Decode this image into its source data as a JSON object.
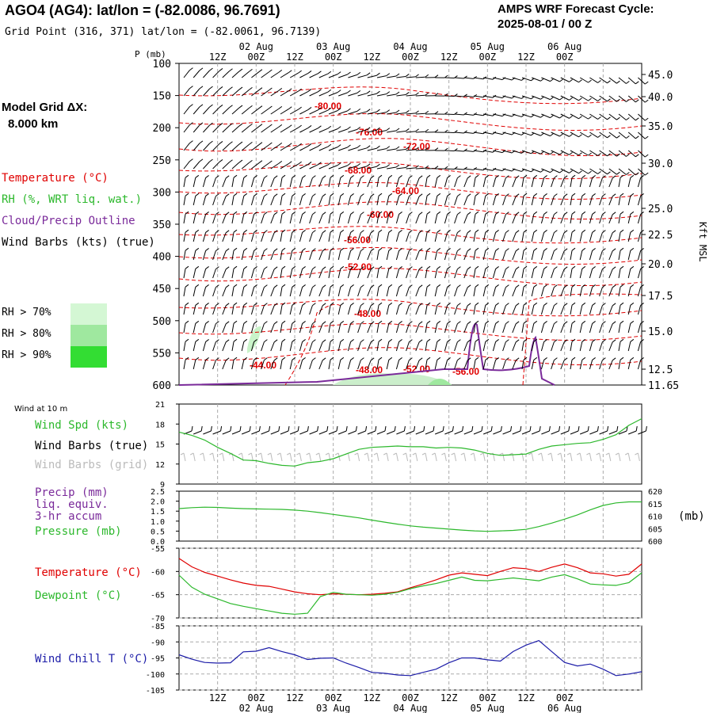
{
  "header": {
    "title": "AGO4 (AG4):  lat/lon = (-82.0086, 96.7691)",
    "subtitle": "Grid Point (316, 371) lat/lon = (-82.0061, 96.7139)",
    "cycle_label": "AMPS WRF Forecast Cycle:",
    "cycle_value": "2025-08-01 / 00  Z"
  },
  "left_panel": {
    "model_grid_label": "Model Grid ΔX:",
    "model_grid_value": "8.000 km",
    "legend": [
      {
        "label": "Temperature (°C)",
        "color": "#e00000"
      },
      {
        "label": "RH (%, WRT liq. wat.)",
        "color": "#2cb82c"
      },
      {
        "label": "Cloud/Precip Outline",
        "color": "#7a2a9a"
      },
      {
        "label": "Wind Barbs (kts) (true)",
        "color": "#000000"
      }
    ],
    "rh_legend": [
      {
        "label": "RH > 70%",
        "color": "#d4f7d4"
      },
      {
        "label": "RH > 80%",
        "color": "#9fe89f"
      },
      {
        "label": "RH > 90%",
        "color": "#33dd33"
      }
    ]
  },
  "time_axis": {
    "hour_labels": [
      "12Z",
      "00Z",
      "12Z",
      "00Z",
      "12Z",
      "00Z",
      "12Z",
      "00Z",
      "12Z",
      "00Z"
    ],
    "date_labels": [
      "02 Aug",
      "03 Aug",
      "04 Aug",
      "05 Aug",
      "06 Aug"
    ]
  },
  "chart_data": [
    {
      "type": "contour",
      "name": "cross-section",
      "ylabel": "P (mb)",
      "y2label": "Kft MSL",
      "pressure_ticks": [
        "100",
        "150",
        "200",
        "250",
        "300",
        "350",
        "400",
        "450",
        "500",
        "550",
        "600"
      ],
      "height_ticks": [
        "45.0",
        "40.0",
        "35.0",
        "30.0",
        "25.0",
        "22.5",
        "20.0",
        "17.5",
        "15.0",
        "12.5",
        "11.65"
      ],
      "temperature_contour_labels": [
        "-80.00",
        "-76.00",
        "-72.00",
        "-68.00",
        "-64.00",
        "-60.00",
        "-56.00",
        "-52.00",
        "-48.00",
        "-44.00",
        "-48.00",
        "-52.00",
        "-56.00"
      ],
      "ylim": [
        600,
        100
      ]
    },
    {
      "type": "line",
      "name": "wind-panel",
      "title": "Wind at 10 m",
      "labels": [
        {
          "text": "Wind Spd (kts)",
          "color": "#2cb82c"
        },
        {
          "text": "Wind Barbs (true)",
          "color": "#000000"
        },
        {
          "text": "Wind Barbs (grid)",
          "color": "#bbbbbb"
        }
      ],
      "y_ticks": [
        "21",
        "18",
        "15",
        "12",
        "9"
      ],
      "ylim": [
        9,
        21
      ],
      "series": [
        {
          "color": "#2cb82c",
          "x": [
            0,
            4,
            8,
            12,
            16,
            20,
            24,
            28,
            32,
            36,
            40,
            44,
            48,
            52,
            56,
            60,
            64,
            68,
            72,
            76,
            80,
            84,
            88,
            92,
            96,
            100,
            104,
            108,
            112,
            116,
            120,
            124,
            128,
            132,
            136,
            140,
            144
          ],
          "values": [
            16.8,
            16.3,
            15.6,
            14.5,
            13.6,
            12.6,
            12.5,
            12.1,
            11.8,
            11.7,
            12.2,
            12.4,
            12.8,
            13.5,
            14.2,
            14.5,
            14.6,
            14.7,
            14.6,
            14.6,
            14.4,
            14.5,
            14.4,
            14.1,
            13.6,
            13.3,
            13.4,
            13.5,
            14.2,
            14.7,
            14.9,
            15.1,
            15.2,
            15.7,
            16.4,
            17.8,
            18.8
          ]
        }
      ]
    },
    {
      "type": "line",
      "name": "precip-pressure-panel",
      "labels": [
        {
          "text": "Precip (mm)",
          "color": "#7a2a9a"
        },
        {
          "text": "liq. equiv.",
          "color": "#7a2a9a"
        },
        {
          "text": "3-hr accum",
          "color": "#7a2a9a"
        },
        {
          "text": "Pressure (mb)",
          "color": "#2cb82c"
        }
      ],
      "y_ticks": [
        "2.5",
        "2.0",
        "1.5",
        "1.0",
        "0.5",
        "0.0"
      ],
      "y2_ticks": [
        "620",
        "615",
        "610",
        "605",
        "600"
      ],
      "y2label": "(mb)",
      "ylim": [
        0,
        2.5
      ],
      "y2lim": [
        600,
        620
      ],
      "series": [
        {
          "color": "#2cb82c",
          "x": [
            0,
            4,
            8,
            12,
            16,
            20,
            24,
            28,
            32,
            36,
            40,
            44,
            48,
            52,
            56,
            60,
            64,
            68,
            72,
            76,
            80,
            84,
            88,
            92,
            96,
            100,
            104,
            108,
            112,
            116,
            120,
            124,
            128,
            132,
            136,
            140,
            144
          ],
          "values": [
            613.0,
            613.4,
            613.6,
            613.5,
            613.2,
            613.0,
            612.9,
            612.8,
            612.7,
            612.4,
            612.0,
            611.4,
            610.7,
            610.0,
            609.3,
            608.4,
            607.6,
            606.8,
            606.1,
            605.6,
            605.2,
            604.8,
            604.4,
            604.1,
            603.9,
            604.1,
            604.3,
            604.7,
            605.8,
            607.2,
            608.8,
            610.5,
            612.5,
            614.3,
            615.3,
            615.7,
            615.7
          ]
        }
      ]
    },
    {
      "type": "line",
      "name": "temp-dewpoint-panel",
      "labels": [
        {
          "text": "Temperature (°C)",
          "color": "#e00000"
        },
        {
          "text": "Dewpoint (°C)",
          "color": "#2cb82c"
        }
      ],
      "y_ticks": [
        "-55",
        "-60",
        "-65",
        "-70"
      ],
      "ylim": [
        -70,
        -55
      ],
      "series": [
        {
          "color": "#e00000",
          "x": [
            0,
            4,
            8,
            12,
            16,
            20,
            24,
            28,
            32,
            36,
            40,
            44,
            48,
            52,
            56,
            60,
            64,
            68,
            72,
            76,
            80,
            84,
            88,
            92,
            96,
            100,
            104,
            108,
            112,
            116,
            120,
            124,
            128,
            132,
            136,
            140,
            144
          ],
          "values": [
            -57.2,
            -59.0,
            -60.2,
            -61.0,
            -61.8,
            -62.5,
            -63.0,
            -63.2,
            -63.8,
            -64.4,
            -64.8,
            -65.0,
            -64.8,
            -64.9,
            -65.0,
            -64.9,
            -64.7,
            -64.4,
            -63.5,
            -62.7,
            -61.8,
            -60.8,
            -60.3,
            -60.6,
            -60.9,
            -60.0,
            -59.2,
            -59.4,
            -60.0,
            -59.1,
            -58.4,
            -59.2,
            -60.3,
            -60.5,
            -61.0,
            -60.6,
            -58.4
          ]
        },
        {
          "color": "#2cb82c",
          "x": [
            0,
            4,
            8,
            12,
            16,
            20,
            24,
            28,
            32,
            36,
            40,
            44,
            48,
            52,
            56,
            60,
            64,
            68,
            72,
            76,
            80,
            84,
            88,
            92,
            96,
            100,
            104,
            108,
            112,
            116,
            120,
            124,
            128,
            132,
            136,
            140,
            144
          ],
          "values": [
            -60.8,
            -63.4,
            -64.9,
            -65.9,
            -66.9,
            -67.5,
            -68.0,
            -68.5,
            -69.0,
            -69.2,
            -69.0,
            -65.4,
            -64.5,
            -64.9,
            -65.0,
            -65.1,
            -64.9,
            -64.5,
            -63.7,
            -63.1,
            -62.6,
            -61.9,
            -61.2,
            -61.9,
            -62.0,
            -61.7,
            -61.4,
            -61.7,
            -62.0,
            -61.2,
            -60.7,
            -61.6,
            -62.7,
            -62.9,
            -63.0,
            -62.4,
            -60.3
          ]
        }
      ]
    },
    {
      "type": "line",
      "name": "wind-chill-panel",
      "labels": [
        {
          "text": "Wind Chill T (°C)",
          "color": "#1c1ca8"
        }
      ],
      "y_ticks": [
        "-85",
        "-90",
        "-95",
        "-100",
        "-105"
      ],
      "ylim": [
        -105,
        -85
      ],
      "series": [
        {
          "color": "#1c1ca8",
          "x": [
            0,
            4,
            8,
            12,
            16,
            20,
            24,
            28,
            32,
            36,
            40,
            44,
            48,
            52,
            56,
            60,
            64,
            68,
            72,
            76,
            80,
            84,
            88,
            92,
            96,
            100,
            104,
            108,
            112,
            116,
            120,
            124,
            128,
            132,
            136,
            140,
            144
          ],
          "values": [
            -94.0,
            -95.4,
            -96.4,
            -96.6,
            -96.5,
            -93.1,
            -92.9,
            -91.8,
            -93.0,
            -94.0,
            -95.5,
            -95.1,
            -95.0,
            -96.6,
            -98.0,
            -99.5,
            -99.8,
            -100.3,
            -100.5,
            -99.5,
            -98.5,
            -96.5,
            -95.0,
            -95.0,
            -95.6,
            -96.0,
            -93.0,
            -91.0,
            -89.6,
            -93.0,
            -96.4,
            -97.5,
            -96.9,
            -98.5,
            -100.5,
            -100.0,
            -99.3
          ]
        }
      ]
    }
  ]
}
